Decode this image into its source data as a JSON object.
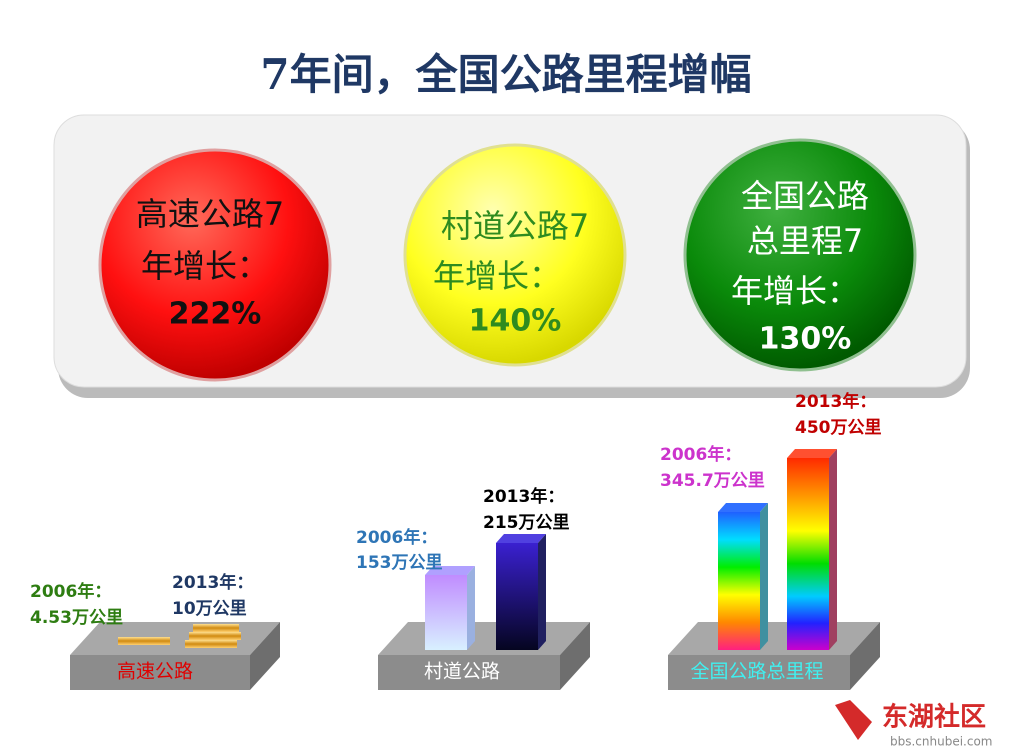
{
  "title": "7年间，全国公路里程增幅",
  "circles": [
    {
      "lines": [
        "高速公路7",
        "年增长："
      ],
      "value": "222%"
    },
    {
      "lines": [
        "村道公路7",
        "年增长："
      ],
      "value": "140%"
    },
    {
      "lines": [
        "全国公路",
        "总里程7",
        "年增长："
      ],
      "value": "130%"
    }
  ],
  "panels": [
    {
      "label": "高速公路",
      "bars": [
        {
          "year": "2006年：",
          "amount": "4.53万公里"
        },
        {
          "year": "2013年：",
          "amount": "10万公里"
        }
      ]
    },
    {
      "label": "村道公路",
      "bars": [
        {
          "year": "2006年：",
          "amount": "153万公里"
        },
        {
          "year": "2013年：",
          "amount": "215万公里"
        }
      ]
    },
    {
      "label": "全国公路总里程",
      "bars": [
        {
          "year": "2006年：",
          "amount": "345.7万公里"
        },
        {
          "year": "2013年：",
          "amount": "450万公里"
        }
      ]
    }
  ],
  "watermark": {
    "name": "东湖社区",
    "url": "bbs.cnhubei.com"
  }
}
